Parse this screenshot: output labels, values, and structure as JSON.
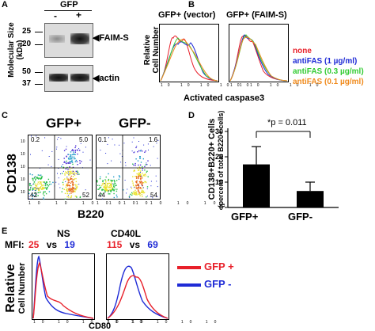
{
  "panels": {
    "A": "A",
    "B": "B",
    "C": "C",
    "D": "D",
    "E": "E"
  },
  "panel_a": {
    "gfp_title": "GFP",
    "lane_minus": "-",
    "lane_plus": "+",
    "ylabel_line1": "Molecular Size",
    "ylabel_line2": "(kDa)",
    "mw_markers": [
      "25",
      "20",
      "50",
      "37"
    ],
    "band_faims": "FAIM-S",
    "band_actin": "actin"
  },
  "panel_b": {
    "title_vector": "GFP+ (vector)",
    "title_faims": "GFP+ (FAIM-S)",
    "ylabel_line1": "Relative",
    "ylabel_line2": "Cell Number",
    "xlabel": "Activated caspase3",
    "legend": [
      {
        "label": "none",
        "color": "#e8202a"
      },
      {
        "label": "antiFAS (1 µg/ml)",
        "color": "#1f2bd6"
      },
      {
        "label": "antiFAS (0.3 µg/ml)",
        "color": "#33cc33"
      },
      {
        "label": "antiFAS (0.1 µg/ml)",
        "color": "#f08a1c"
      }
    ]
  },
  "panel_c": {
    "title_pos": "GFP+",
    "title_neg": "GFP-",
    "ylabel": "CD138",
    "xlabel": "B220",
    "pos_quadrants": {
      "ul": "0.2",
      "ur": "5.0",
      "ll": "42",
      "lr": "52"
    },
    "neg_quadrants": {
      "ul": "0.1",
      "ur": "1.6",
      "ll": "44",
      "lr": "54"
    }
  },
  "panel_d": {
    "ylabel_line1": "CD138+B220+ Cells",
    "ylabel_line2": "(percent of total B220+ cells)",
    "pvalue": "*p = 0.011"
  },
  "chart_data": {
    "type": "bar",
    "categories": [
      "GFP+",
      "GFP-"
    ],
    "values": [
      17,
      6.5
    ],
    "errors": [
      7,
      3.5
    ],
    "ylabel": "CD138+B220+ Cells (percent of total B220+ cells)",
    "ylim": [
      0,
      30
    ],
    "yticks": [
      "0",
      "10",
      "20",
      "30"
    ]
  },
  "panel_e": {
    "mfi_label": "MFI:",
    "ns_title": "NS",
    "cd40l_title": "CD40L",
    "ns_red": "25",
    "ns_blue": "19",
    "cd40l_red": "115",
    "cd40l_blue": "69",
    "vs": "vs",
    "ylabel_line1": "Relative",
    "ylabel_line2": "Cell Number",
    "xlabel": "CD80",
    "legend_gfp": "GFP",
    "legend_plus": "+",
    "legend_minus": "-",
    "red": "#e8202a",
    "blue": "#1f2bd6"
  },
  "flow_axis": {
    "log_ticks": [
      "10⁰",
      "10¹",
      "10²",
      "10³",
      "10⁴"
    ]
  }
}
